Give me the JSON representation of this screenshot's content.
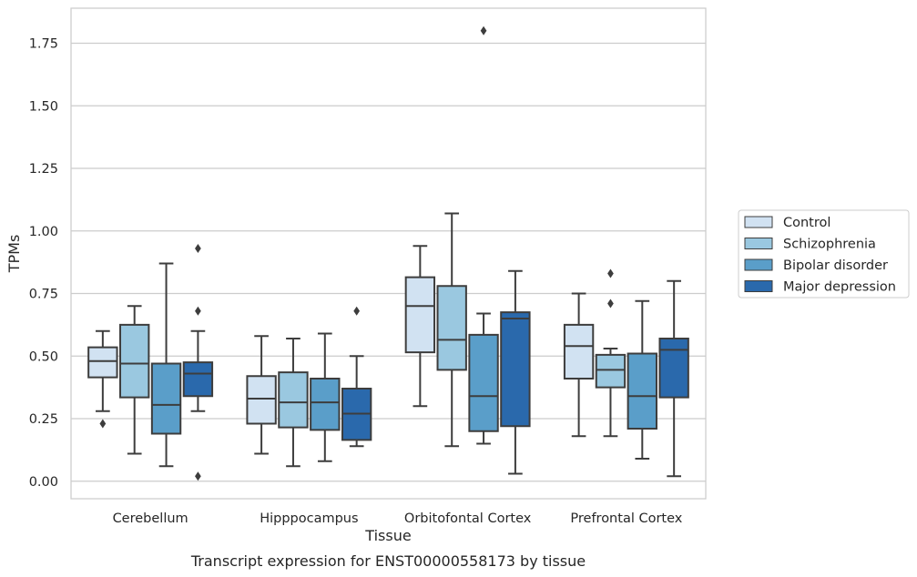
{
  "chart_data": {
    "type": "box",
    "title": "",
    "caption": "Transcript expression for ENST00000558173 by tissue",
    "xlabel": "Tissue",
    "ylabel": "TPMs",
    "ylim": [
      -0.07,
      1.89
    ],
    "yticks": [
      0.0,
      0.25,
      0.5,
      0.75,
      1.0,
      1.25,
      1.5,
      1.75
    ],
    "ytick_labels": [
      "0.00",
      "0.25",
      "0.50",
      "0.75",
      "1.00",
      "1.25",
      "1.50",
      "1.75"
    ],
    "grid": "horizontal",
    "legend_position": "right",
    "categories": [
      "Cerebellum",
      "Hipppocampus",
      "Orbitofontal Cortex",
      "Prefrontal Cortex"
    ],
    "series": [
      {
        "name": "Control",
        "color": "#d1e2f2",
        "boxes": [
          {
            "whisker_low": 0.28,
            "q1": 0.415,
            "median": 0.48,
            "q3": 0.535,
            "whisker_high": 0.6,
            "outliers": [
              0.23
            ]
          },
          {
            "whisker_low": 0.11,
            "q1": 0.23,
            "median": 0.33,
            "q3": 0.42,
            "whisker_high": 0.58,
            "outliers": []
          },
          {
            "whisker_low": 0.3,
            "q1": 0.515,
            "median": 0.7,
            "q3": 0.815,
            "whisker_high": 0.94,
            "outliers": []
          },
          {
            "whisker_low": 0.18,
            "q1": 0.41,
            "median": 0.54,
            "q3": 0.625,
            "whisker_high": 0.75,
            "outliers": []
          }
        ]
      },
      {
        "name": "Schizophrenia",
        "color": "#9ac8e0",
        "boxes": [
          {
            "whisker_low": 0.11,
            "q1": 0.335,
            "median": 0.47,
            "q3": 0.625,
            "whisker_high": 0.7,
            "outliers": []
          },
          {
            "whisker_low": 0.06,
            "q1": 0.215,
            "median": 0.315,
            "q3": 0.435,
            "whisker_high": 0.57,
            "outliers": []
          },
          {
            "whisker_low": 0.14,
            "q1": 0.445,
            "median": 0.565,
            "q3": 0.78,
            "whisker_high": 1.07,
            "outliers": []
          },
          {
            "whisker_low": 0.18,
            "q1": 0.375,
            "median": 0.445,
            "q3": 0.505,
            "whisker_high": 0.53,
            "outliers": [
              0.83,
              0.71
            ]
          }
        ]
      },
      {
        "name": "Bipolar disorder",
        "color": "#5a9ec9",
        "boxes": [
          {
            "whisker_low": 0.06,
            "q1": 0.19,
            "median": 0.305,
            "q3": 0.47,
            "whisker_high": 0.87,
            "outliers": []
          },
          {
            "whisker_low": 0.08,
            "q1": 0.205,
            "median": 0.315,
            "q3": 0.41,
            "whisker_high": 0.59,
            "outliers": []
          },
          {
            "whisker_low": 0.15,
            "q1": 0.2,
            "median": 0.34,
            "q3": 0.585,
            "whisker_high": 0.67,
            "outliers": [
              1.8
            ]
          },
          {
            "whisker_low": 0.09,
            "q1": 0.21,
            "median": 0.34,
            "q3": 0.51,
            "whisker_high": 0.72,
            "outliers": []
          }
        ]
      },
      {
        "name": "Major depression",
        "color": "#2a69ac",
        "boxes": [
          {
            "whisker_low": 0.28,
            "q1": 0.34,
            "median": 0.43,
            "q3": 0.475,
            "whisker_high": 0.6,
            "outliers": [
              0.93,
              0.68,
              0.02
            ]
          },
          {
            "whisker_low": 0.14,
            "q1": 0.165,
            "median": 0.27,
            "q3": 0.37,
            "whisker_high": 0.5,
            "outliers": [
              0.68
            ]
          },
          {
            "whisker_low": 0.03,
            "q1": 0.22,
            "median": 0.65,
            "q3": 0.675,
            "whisker_high": 0.84,
            "outliers": []
          },
          {
            "whisker_low": 0.02,
            "q1": 0.335,
            "median": 0.525,
            "q3": 0.57,
            "whisker_high": 0.8,
            "outliers": []
          }
        ]
      }
    ]
  }
}
